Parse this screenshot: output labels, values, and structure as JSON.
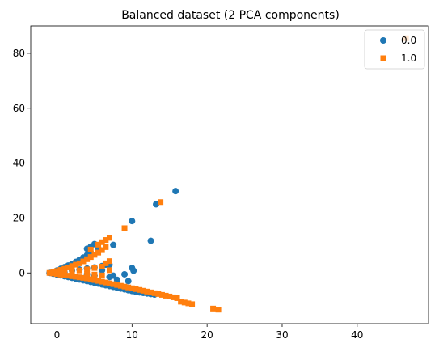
{
  "chart_data": {
    "type": "scatter",
    "title": "Balanced dataset (2 PCA components)",
    "xlabel": "",
    "ylabel": "",
    "xlim": [
      -3.5,
      49.5
    ],
    "ylim": [
      -18.5,
      90
    ],
    "xticks": [
      0,
      10,
      20,
      30,
      40
    ],
    "yticks": [
      0,
      20,
      40,
      60,
      80
    ],
    "grid": false,
    "legend_position": "top-right",
    "series": [
      {
        "name": "0.0",
        "marker": "circle",
        "color": "#1f77b4",
        "points": [
          [
            -1,
            0
          ],
          [
            -0.5,
            -0.3
          ],
          [
            0,
            -0.6
          ],
          [
            0.5,
            -0.9
          ],
          [
            1,
            -1.2
          ],
          [
            1.5,
            -1.5
          ],
          [
            2,
            -1.8
          ],
          [
            2.5,
            -2.1
          ],
          [
            3,
            -2.4
          ],
          [
            3.5,
            -2.7
          ],
          [
            4,
            -3.0
          ],
          [
            4.5,
            -3.3
          ],
          [
            5,
            -3.6
          ],
          [
            5.5,
            -3.9
          ],
          [
            6,
            -4.2
          ],
          [
            6.5,
            -4.5
          ],
          [
            7,
            -4.8
          ],
          [
            7.5,
            -5.1
          ],
          [
            8,
            -5.4
          ],
          [
            8.5,
            -5.7
          ],
          [
            9,
            -6.0
          ],
          [
            9.5,
            -6.3
          ],
          [
            10,
            -6.6
          ],
          [
            10.5,
            -6.9
          ],
          [
            11,
            -7.1
          ],
          [
            11.5,
            -7.3
          ],
          [
            12,
            -7.5
          ],
          [
            12.5,
            -7.7
          ],
          [
            13,
            -7.9
          ],
          [
            -0.5,
            0.4
          ],
          [
            0,
            0.9
          ],
          [
            0.5,
            1.5
          ],
          [
            1,
            2.1
          ],
          [
            1.5,
            2.7
          ],
          [
            2,
            3.3
          ],
          [
            2.5,
            4.0
          ],
          [
            3,
            4.8
          ],
          [
            3.5,
            5.6
          ],
          [
            4,
            6.5
          ],
          [
            4.5,
            7.4
          ],
          [
            4,
            8.8
          ],
          [
            4.5,
            9.6
          ],
          [
            5,
            10.5
          ],
          [
            5.5,
            9.0
          ],
          [
            1,
            0.3
          ],
          [
            2,
            0.8
          ],
          [
            3,
            1.2
          ],
          [
            4,
            1.6
          ],
          [
            5,
            2.0
          ],
          [
            6,
            2.5
          ],
          [
            7,
            3.0
          ],
          [
            4,
            -0.5
          ],
          [
            5,
            -1.0
          ],
          [
            6,
            1.0
          ],
          [
            6.5,
            3.0
          ],
          [
            7,
            -1.5
          ],
          [
            7.5,
            10.2
          ],
          [
            7.5,
            -1.0
          ],
          [
            8,
            -2.5
          ],
          [
            9,
            -0.5
          ],
          [
            9.5,
            -3.0
          ],
          [
            10,
            1.8
          ],
          [
            10.2,
            0.8
          ],
          [
            10,
            18.9
          ],
          [
            12.5,
            11.7
          ],
          [
            13.2,
            25.0
          ],
          [
            15.8,
            29.8
          ]
        ]
      },
      {
        "name": "1.0",
        "marker": "square",
        "color": "#ff7f0e",
        "points": [
          [
            -1,
            0
          ],
          [
            -0.5,
            -0.2
          ],
          [
            0,
            -0.4
          ],
          [
            0.5,
            -0.6
          ],
          [
            1,
            -0.8
          ],
          [
            1.5,
            -1.0
          ],
          [
            2,
            -1.2
          ],
          [
            2.5,
            -1.4
          ],
          [
            3,
            -1.6
          ],
          [
            3.5,
            -1.8
          ],
          [
            4,
            -2.0
          ],
          [
            4.5,
            -2.3
          ],
          [
            5,
            -2.6
          ],
          [
            5.5,
            -2.9
          ],
          [
            6,
            -3.2
          ],
          [
            6.5,
            -3.5
          ],
          [
            7,
            -3.8
          ],
          [
            7.5,
            -4.1
          ],
          [
            8,
            -4.4
          ],
          [
            8.5,
            -4.7
          ],
          [
            9,
            -5.0
          ],
          [
            9.5,
            -5.3
          ],
          [
            10,
            -5.6
          ],
          [
            10.5,
            -5.9
          ],
          [
            11,
            -6.2
          ],
          [
            11.5,
            -6.5
          ],
          [
            12,
            -6.8
          ],
          [
            12.5,
            -7.1
          ],
          [
            13,
            -7.4
          ],
          [
            13.5,
            -7.7
          ],
          [
            14,
            -8.0
          ],
          [
            14.5,
            -8.3
          ],
          [
            15,
            -8.6
          ],
          [
            15.5,
            -8.9
          ],
          [
            16,
            -9.2
          ],
          [
            16.5,
            -10.5
          ],
          [
            17,
            -10.8
          ],
          [
            17.5,
            -11.1
          ],
          [
            18,
            -11.4
          ],
          [
            20.8,
            -13.0
          ],
          [
            21.5,
            -13.4
          ],
          [
            -0.5,
            0.3
          ],
          [
            0,
            0.7
          ],
          [
            0.5,
            1.1
          ],
          [
            1,
            1.5
          ],
          [
            1.5,
            2.0
          ],
          [
            2,
            2.5
          ],
          [
            2.5,
            3.0
          ],
          [
            3,
            3.5
          ],
          [
            3.5,
            4.2
          ],
          [
            4,
            5.0
          ],
          [
            4.5,
            5.8
          ],
          [
            5,
            6.6
          ],
          [
            5.5,
            7.4
          ],
          [
            6,
            8.3
          ],
          [
            6.5,
            9.4
          ],
          [
            4.5,
            8.5
          ],
          [
            5.5,
            10.3
          ],
          [
            6,
            11.2
          ],
          [
            6.5,
            12.0
          ],
          [
            7,
            12.8
          ],
          [
            1,
            0.2
          ],
          [
            2,
            0.5
          ],
          [
            3,
            0.9
          ],
          [
            4,
            1.3
          ],
          [
            5,
            1.8
          ],
          [
            6,
            2.3
          ],
          [
            6.5,
            3.5
          ],
          [
            7,
            4.3
          ],
          [
            4,
            -0.3
          ],
          [
            5,
            -0.6
          ],
          [
            6,
            -0.9
          ],
          [
            7,
            1.0
          ],
          [
            9,
            16.3
          ],
          [
            13.8,
            25.8
          ],
          [
            46.5,
            85.5
          ]
        ]
      }
    ]
  }
}
